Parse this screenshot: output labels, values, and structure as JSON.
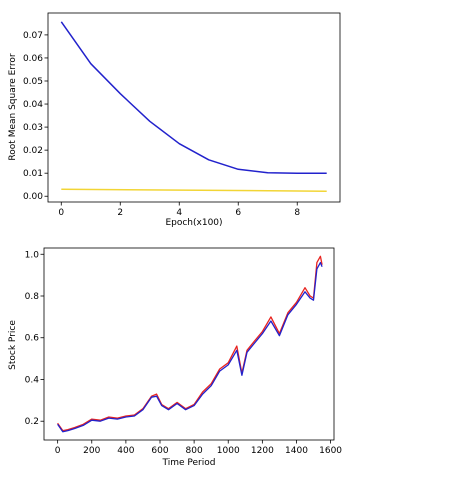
{
  "chart_data": [
    {
      "type": "line",
      "xlabel": "Epoch(x100)",
      "ylabel": "Root Mean Square Error",
      "xlim": [
        -0.45,
        9.45
      ],
      "ylim": [
        -0.0025,
        0.0795
      ],
      "xticks": [
        0,
        2,
        4,
        6,
        8
      ],
      "yticks": [
        0.0,
        0.01,
        0.02,
        0.03,
        0.04,
        0.05,
        0.06,
        0.07
      ],
      "ytick_labels": [
        "0.00",
        "0.01",
        "0.02",
        "0.03",
        "0.04",
        "0.05",
        "0.06",
        "0.07"
      ],
      "grid": false,
      "series": [
        {
          "color": "#2222cc",
          "x": [
            0,
            1,
            2,
            3,
            4,
            5,
            6,
            7,
            8,
            9
          ],
          "y": [
            0.0757,
            0.0575,
            0.0445,
            0.0325,
            0.0228,
            0.0158,
            0.0117,
            0.0102,
            0.01,
            0.01
          ]
        },
        {
          "color": "#f2d535",
          "x": [
            0,
            9
          ],
          "y": [
            0.003,
            0.0022
          ]
        }
      ]
    },
    {
      "type": "line",
      "xlabel": "Time Period",
      "ylabel": "Stock Price",
      "xlim": [
        -80,
        1620
      ],
      "ylim": [
        0.11,
        1.03
      ],
      "xticks": [
        0,
        200,
        400,
        600,
        800,
        1000,
        1200,
        1400,
        1600
      ],
      "yticks": [
        0.2,
        0.4,
        0.6,
        0.8,
        1.0
      ],
      "ytick_labels": [
        "0.2",
        "0.4",
        "0.6",
        "0.8",
        "1.0"
      ],
      "grid": false,
      "series": [
        {
          "color": "#e8231f",
          "x": [
            0,
            30,
            60,
            100,
            150,
            200,
            250,
            300,
            350,
            400,
            450,
            500,
            550,
            580,
            610,
            650,
            700,
            750,
            800,
            850,
            900,
            950,
            1000,
            1050,
            1080,
            1110,
            1150,
            1200,
            1250,
            1300,
            1350,
            1400,
            1450,
            1480,
            1500,
            1520,
            1540,
            1550
          ],
          "y": [
            0.19,
            0.155,
            0.16,
            0.17,
            0.185,
            0.21,
            0.205,
            0.22,
            0.215,
            0.225,
            0.23,
            0.26,
            0.32,
            0.33,
            0.28,
            0.26,
            0.29,
            0.26,
            0.28,
            0.34,
            0.38,
            0.45,
            0.48,
            0.56,
            0.43,
            0.54,
            0.58,
            0.63,
            0.7,
            0.62,
            0.72,
            0.77,
            0.84,
            0.8,
            0.79,
            0.96,
            0.99,
            0.95
          ]
        },
        {
          "color": "#2222cc",
          "x": [
            0,
            30,
            60,
            100,
            150,
            200,
            250,
            300,
            350,
            400,
            450,
            500,
            550,
            580,
            610,
            650,
            700,
            750,
            800,
            850,
            900,
            950,
            1000,
            1050,
            1080,
            1110,
            1150,
            1200,
            1250,
            1300,
            1350,
            1400,
            1450,
            1480,
            1500,
            1520,
            1540,
            1550
          ],
          "y": [
            0.185,
            0.15,
            0.155,
            0.165,
            0.18,
            0.205,
            0.2,
            0.215,
            0.21,
            0.22,
            0.225,
            0.255,
            0.315,
            0.32,
            0.275,
            0.255,
            0.285,
            0.255,
            0.275,
            0.33,
            0.37,
            0.44,
            0.47,
            0.54,
            0.42,
            0.53,
            0.57,
            0.62,
            0.68,
            0.61,
            0.71,
            0.76,
            0.82,
            0.79,
            0.78,
            0.93,
            0.96,
            0.94
          ]
        }
      ]
    }
  ]
}
